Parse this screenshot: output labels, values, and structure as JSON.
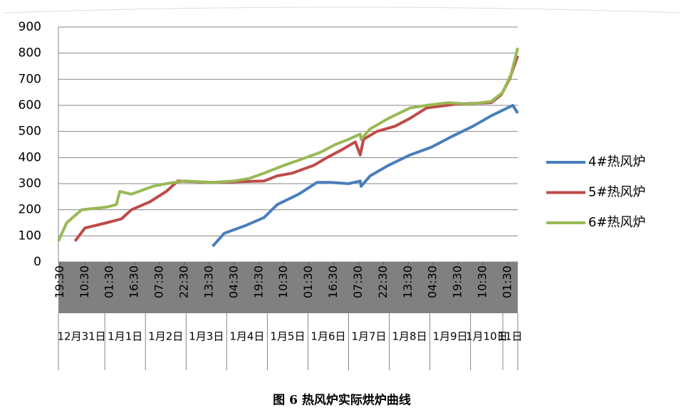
{
  "chart_data": {
    "type": "line",
    "title": "图 6  热风炉实际烘炉曲线",
    "xlim": [
      -1,
      276
    ],
    "xticks": [
      {
        "value": 0,
        "label": "19:30"
      },
      {
        "value": 15,
        "label": "10:30"
      },
      {
        "value": 30,
        "label": "01:30"
      },
      {
        "value": 45,
        "label": "16:30"
      },
      {
        "value": 60,
        "label": "07:30"
      },
      {
        "value": 75,
        "label": "22:30"
      },
      {
        "value": 90,
        "label": "13:30"
      },
      {
        "value": 105,
        "label": "04:30"
      },
      {
        "value": 120,
        "label": "19:30"
      },
      {
        "value": 135,
        "label": "10:30"
      },
      {
        "value": 150,
        "label": "01:30"
      },
      {
        "value": 165,
        "label": "16:30"
      },
      {
        "value": 180,
        "label": "07:30"
      },
      {
        "value": 195,
        "label": "22:30"
      },
      {
        "value": 210,
        "label": "13:30"
      },
      {
        "value": 225,
        "label": "04:30"
      },
      {
        "value": 240,
        "label": "19:30"
      },
      {
        "value": 255,
        "label": "10:30"
      },
      {
        "value": 270,
        "label": "01:30"
      }
    ],
    "x_groups": [
      {
        "label": "12月31日",
        "from": -1,
        "to": 27
      },
      {
        "label": "1月1日",
        "from": 27,
        "to": 51.5
      },
      {
        "label": "1月2日",
        "from": 51.5,
        "to": 76
      },
      {
        "label": "1月3日",
        "from": 76,
        "to": 100.5
      },
      {
        "label": "1月4日",
        "from": 100.5,
        "to": 125
      },
      {
        "label": "1月5日",
        "from": 125,
        "to": 149.5
      },
      {
        "label": "1月6日",
        "from": 149.5,
        "to": 174
      },
      {
        "label": "1月7日",
        "from": 174,
        "to": 198.5
      },
      {
        "label": "1月8日",
        "from": 198.5,
        "to": 223
      },
      {
        "label": "1月9日",
        "from": 223,
        "to": 247.5
      },
      {
        "label": "1月10日",
        "from": 247.5,
        "to": 267
      },
      {
        "label": "11日",
        "from": 267,
        "to": 276
      }
    ],
    "ylim": [
      0,
      900
    ],
    "yticks": [
      0,
      100,
      200,
      300,
      400,
      500,
      600,
      700,
      800,
      900
    ],
    "grid": true,
    "legend": "right",
    "series": [
      {
        "name": "4#热风炉",
        "color": "#4a7ebb",
        "x": [
          92,
          99,
          112,
          123,
          131,
          144,
          155,
          163,
          174,
          181,
          181.5,
          187,
          198,
          211,
          224,
          236,
          249,
          260,
          273,
          276
        ],
        "values": [
          60,
          110,
          140,
          170,
          220,
          260,
          305,
          305,
          300,
          310,
          290,
          330,
          370,
          410,
          440,
          480,
          520,
          560,
          600,
          570
        ]
      },
      {
        "name": "5#热风炉",
        "color": "#be4b48",
        "x": [
          9,
          15,
          28,
          37,
          43,
          54,
          64,
          71,
          92,
          123,
          131,
          140,
          153,
          161,
          170,
          178,
          181,
          183,
          191,
          202,
          211,
          221,
          239,
          260,
          266,
          271,
          276
        ],
        "values": [
          80,
          130,
          150,
          165,
          200,
          230,
          270,
          310,
          305,
          310,
          330,
          340,
          370,
          400,
          430,
          460,
          410,
          470,
          500,
          520,
          550,
          590,
          605,
          610,
          640,
          700,
          790
        ]
      },
      {
        "name": "6#热风炉",
        "color": "#98b954",
        "x": [
          -1,
          4,
          13,
          28,
          34,
          36,
          43,
          56,
          64,
          75,
          92,
          105,
          114,
          123,
          135,
          144,
          157,
          166,
          174,
          181,
          181.5,
          187,
          198,
          211,
          221,
          234,
          247,
          260,
          267,
          272,
          276
        ],
        "values": [
          80,
          150,
          200,
          210,
          220,
          270,
          260,
          290,
          300,
          310,
          305,
          310,
          320,
          340,
          370,
          390,
          420,
          450,
          470,
          490,
          470,
          510,
          550,
          590,
          600,
          610,
          605,
          615,
          650,
          720,
          820
        ]
      }
    ]
  }
}
